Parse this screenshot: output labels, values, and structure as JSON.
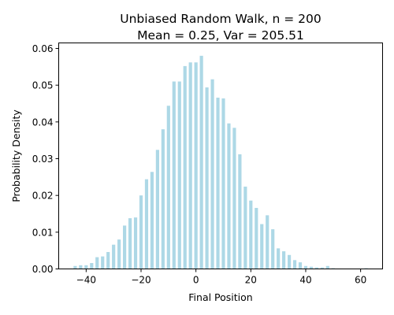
{
  "chart_data": {
    "type": "bar",
    "title": "Unbiased Random Walk, n = 200",
    "subtitle": "Mean = 0.25, Var = 205.51",
    "xlabel": "Final Position",
    "ylabel": "Probability Density",
    "xlim": [
      -50,
      68
    ],
    "ylim": [
      0,
      0.0615
    ],
    "xticks": [
      -40,
      -20,
      0,
      20,
      40,
      60
    ],
    "xtick_labels": [
      "−40",
      "−20",
      "0",
      "20",
      "40",
      "60"
    ],
    "yticks": [
      0.0,
      0.01,
      0.02,
      0.03,
      0.04,
      0.05,
      0.06
    ],
    "ytick_labels": [
      "0.00",
      "0.01",
      "0.02",
      "0.03",
      "0.04",
      "0.05",
      "0.06"
    ],
    "bar_color": "#add8e6",
    "grid": false,
    "x": [
      -44,
      -42,
      -40,
      -38,
      -36,
      -34,
      -32,
      -30,
      -28,
      -26,
      -24,
      -22,
      -20,
      -18,
      -16,
      -14,
      -12,
      -10,
      -8,
      -6,
      -4,
      -2,
      0,
      2,
      4,
      6,
      8,
      10,
      12,
      14,
      16,
      18,
      20,
      22,
      24,
      26,
      28,
      30,
      32,
      34,
      36,
      38,
      40,
      42,
      44,
      46,
      48,
      50,
      62
    ],
    "values": [
      0.0008,
      0.001,
      0.001,
      0.0016,
      0.0032,
      0.0034,
      0.0046,
      0.0066,
      0.008,
      0.0118,
      0.0138,
      0.014,
      0.02,
      0.0244,
      0.0264,
      0.0324,
      0.038,
      0.0444,
      0.051,
      0.051,
      0.0552,
      0.0562,
      0.0562,
      0.058,
      0.0494,
      0.0516,
      0.0466,
      0.0464,
      0.0396,
      0.0384,
      0.0312,
      0.0224,
      0.0186,
      0.0166,
      0.0122,
      0.0146,
      0.0108,
      0.0056,
      0.0048,
      0.0038,
      0.0024,
      0.0018,
      0.0008,
      0.0006,
      0.0004,
      0.0004,
      0.0008,
      0.0002,
      0.0002
    ]
  }
}
